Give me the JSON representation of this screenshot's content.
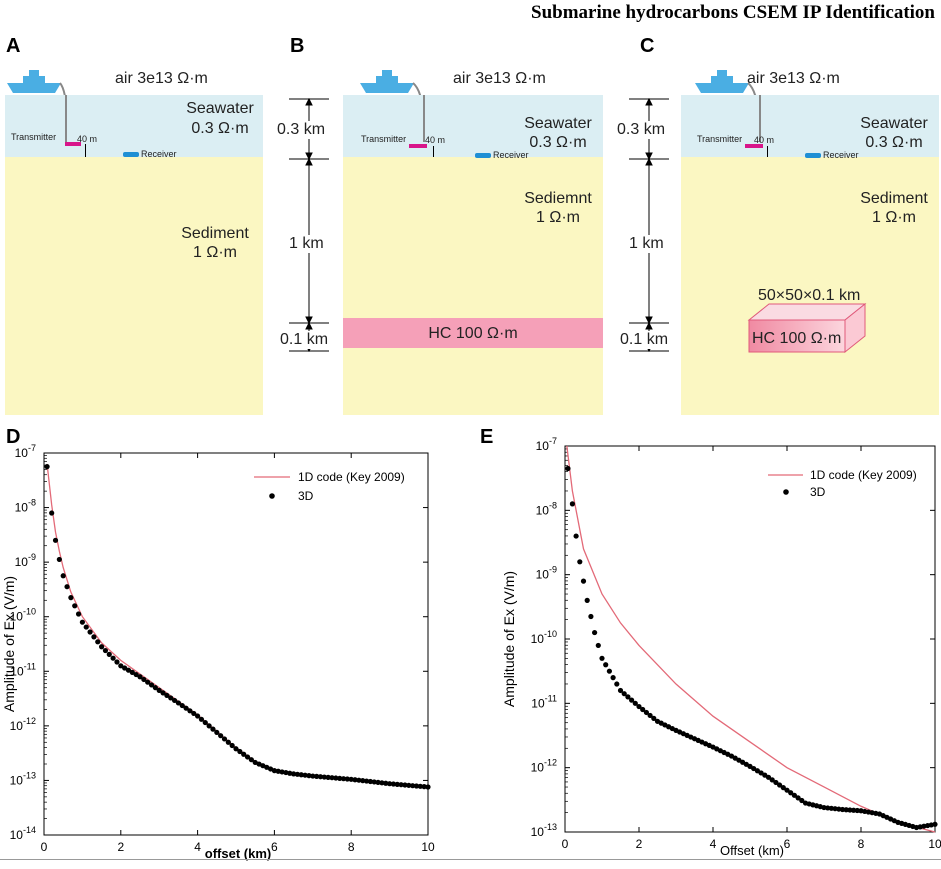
{
  "header": {
    "title": "Submarine hydrocarbons CSEM IP Identification"
  },
  "panel_letters": {
    "a": "A",
    "b": "B",
    "c": "C",
    "d": "D",
    "e": "E"
  },
  "models": {
    "air_label": "air 3e13 Ω·m",
    "seawater_label": "Seawater",
    "seawater_resistivity": "0.3 Ω·m",
    "transmitter_label": "Transmitter",
    "tx_height": "40 m",
    "receiver_label": "Receiver",
    "sediment_label_a": "Sediment",
    "sediment_label_b": "Sediemnt",
    "sediment_label_c": "Sediment",
    "sediment_resistivity": "1 Ω·m",
    "hc_layer_label": "HC    100 Ω·m",
    "hc_block_label": "HC 100 Ω·m",
    "block_dims": "50×50×0.1 km",
    "dim_water": "0.3 km",
    "dim_sediment": "1 km",
    "dim_hc": "0.1 km"
  },
  "chart_data": [
    {
      "type": "scatter",
      "panel": "D",
      "xlabel": "offset (km)",
      "ylabel": "Amplitude of Ex (V/m)",
      "xlim": [
        0,
        10
      ],
      "ylim_log10": [
        -14,
        -7
      ],
      "x_ticks": [
        "0",
        "2",
        "4",
        "6",
        "8",
        "10"
      ],
      "y_ticks": [
        "10-7",
        "10-8",
        "10-9",
        "10-10",
        "10-11",
        "10-12",
        "10-13",
        "10-14"
      ],
      "legend": [
        "1D code (Key 2009)",
        "3D"
      ],
      "series": [
        {
          "name": "1D code (Key 2009)",
          "style": "line",
          "color": "#e36a78",
          "x": [
            0.08,
            0.2,
            0.3,
            0.4,
            0.5,
            0.7,
            1.0,
            1.5,
            2.0,
            2.5,
            3.0,
            3.5,
            4.0,
            4.5,
            5.0,
            5.5,
            6.0,
            6.5,
            7.0,
            8.0,
            9.0,
            10.0
          ],
          "log10y": [
            -7.2,
            -7.95,
            -8.45,
            -8.8,
            -9.1,
            -9.55,
            -10.0,
            -10.48,
            -10.8,
            -11.05,
            -11.3,
            -11.55,
            -11.8,
            -12.1,
            -12.4,
            -12.65,
            -12.8,
            -12.87,
            -12.9,
            -12.97,
            -13.05,
            -13.1
          ]
        },
        {
          "name": "3D",
          "style": "markers",
          "color": "#000000",
          "x": [
            0.08,
            0.2,
            0.3,
            0.4,
            0.5,
            0.7,
            1.0,
            1.5,
            2.0,
            2.5,
            3.0,
            3.5,
            4.0,
            4.5,
            5.0,
            5.5,
            6.0,
            6.5,
            7.0,
            8.0,
            9.0,
            10.0
          ],
          "log10y": [
            -7.25,
            -8.1,
            -8.6,
            -8.95,
            -9.25,
            -9.65,
            -10.1,
            -10.55,
            -10.9,
            -11.1,
            -11.35,
            -11.58,
            -11.82,
            -12.12,
            -12.42,
            -12.67,
            -12.82,
            -12.88,
            -12.92,
            -12.98,
            -13.06,
            -13.12
          ]
        }
      ]
    },
    {
      "type": "scatter",
      "panel": "E",
      "xlabel": "Offset (km)",
      "ylabel": "Amplitude of Ex (V/m)",
      "xlim": [
        0,
        10
      ],
      "ylim_log10": [
        -13,
        -7
      ],
      "x_ticks": [
        "0",
        "2",
        "4",
        "6",
        "8",
        "10"
      ],
      "y_ticks": [
        "10-7",
        "10-8",
        "10-9",
        "10-10",
        "10-11",
        "10-12",
        "10-13"
      ],
      "legend": [
        "1D code (Key 2009)",
        "3D"
      ],
      "series": [
        {
          "name": "1D code (Key 2009)",
          "style": "line",
          "color": "#e36a78",
          "x": [
            0.05,
            0.2,
            0.5,
            1.0,
            1.5,
            2.0,
            3.0,
            4.0,
            5.0,
            6.0,
            7.0,
            8.0,
            9.0,
            10.0
          ],
          "log10y": [
            -7.0,
            -7.7,
            -8.6,
            -9.3,
            -9.75,
            -10.1,
            -10.7,
            -11.2,
            -11.6,
            -12.0,
            -12.3,
            -12.6,
            -12.85,
            -13.0
          ]
        },
        {
          "name": "3D",
          "style": "markers",
          "color": "#000000",
          "x": [
            0.08,
            0.2,
            0.3,
            0.4,
            0.5,
            0.6,
            0.8,
            1.0,
            1.5,
            2.0,
            2.5,
            3.0,
            3.5,
            4.0,
            4.5,
            5.0,
            5.5,
            6.0,
            6.5,
            7.0,
            7.5,
            8.0,
            8.5,
            9.0,
            9.5,
            10.0
          ],
          "log10y": [
            -7.35,
            -7.9,
            -8.4,
            -8.8,
            -9.1,
            -9.4,
            -9.9,
            -10.3,
            -10.8,
            -11.05,
            -11.28,
            -11.42,
            -11.55,
            -11.68,
            -11.82,
            -11.98,
            -12.15,
            -12.35,
            -12.55,
            -12.62,
            -12.65,
            -12.67,
            -12.72,
            -12.85,
            -12.93,
            -12.88
          ]
        }
      ]
    }
  ]
}
